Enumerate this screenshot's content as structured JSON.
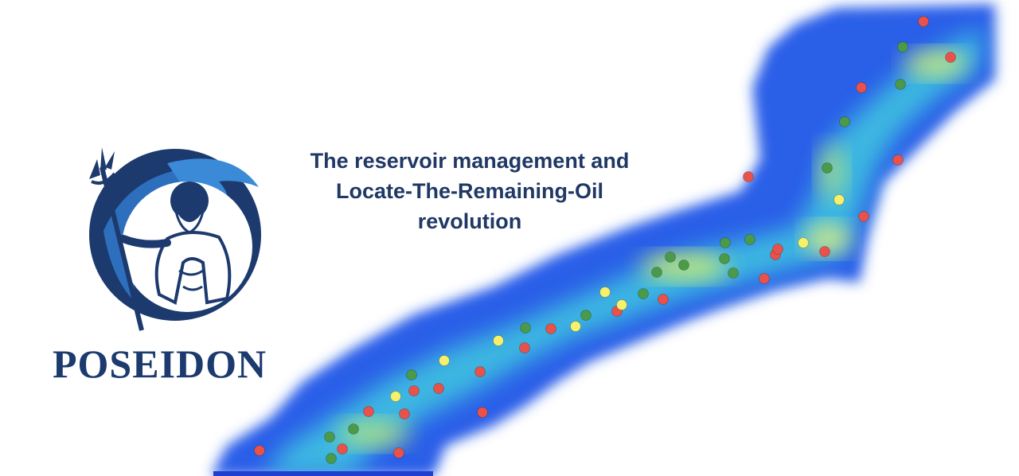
{
  "brand": {
    "name": "POSEIDON"
  },
  "tagline": {
    "line1": "The reservoir management and",
    "line2": "Locate-The-Remaining-Oil",
    "line3": "revolution"
  },
  "map": {
    "well_colors": {
      "green": "#4a9a4a",
      "red": "#e8524a",
      "yellow": "#f6f06a"
    },
    "wells": [
      {
        "status": "red"
      },
      {
        "status": "green"
      },
      {
        "status": "red"
      },
      {
        "status": "green"
      },
      {
        "status": "red"
      },
      {
        "status": "green"
      },
      {
        "status": "red"
      },
      {
        "status": "green"
      },
      {
        "status": "yellow"
      },
      {
        "status": "red"
      },
      {
        "status": "red"
      },
      {
        "status": "red"
      },
      {
        "status": "green"
      },
      {
        "status": "red"
      },
      {
        "status": "green"
      },
      {
        "status": "green"
      },
      {
        "status": "green"
      },
      {
        "status": "red"
      },
      {
        "status": "red"
      },
      {
        "status": "green"
      },
      {
        "status": "green"
      },
      {
        "status": "yellow"
      },
      {
        "status": "yellow"
      },
      {
        "status": "green"
      },
      {
        "status": "red"
      },
      {
        "status": "red"
      },
      {
        "status": "yellow"
      },
      {
        "status": "red"
      },
      {
        "status": "green"
      },
      {
        "status": "yellow"
      },
      {
        "status": "yellow"
      },
      {
        "status": "red"
      },
      {
        "status": "green"
      },
      {
        "status": "red"
      },
      {
        "status": "yellow"
      },
      {
        "status": "red"
      },
      {
        "status": "green"
      },
      {
        "status": "red"
      },
      {
        "status": "yellow"
      },
      {
        "status": "red"
      },
      {
        "status": "red"
      },
      {
        "status": "green"
      },
      {
        "status": "green"
      },
      {
        "status": "red"
      },
      {
        "status": "red"
      },
      {
        "status": "green"
      },
      {
        "status": "green"
      },
      {
        "status": "red"
      },
      {
        "status": "red"
      }
    ]
  }
}
